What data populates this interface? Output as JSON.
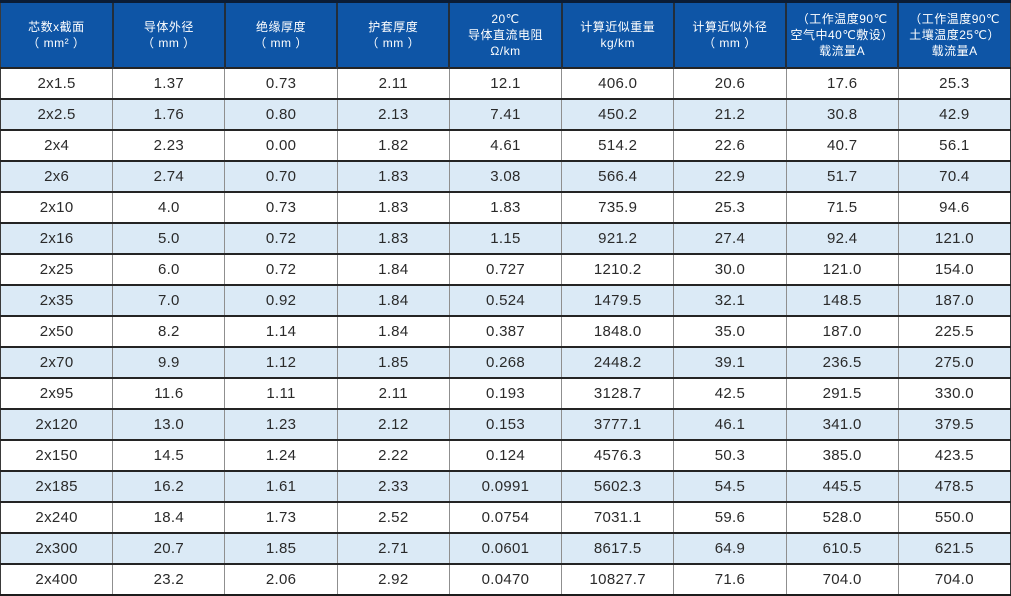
{
  "colors": {
    "header_bg": "#0e55a6",
    "header_text": "#ffffff",
    "row_alt_bg": "#dbeaf6",
    "cell_text": "#2a2a2a",
    "grid_dark": "#242424",
    "grid_gray": "#8f8f8f"
  },
  "table": {
    "headers": [
      {
        "lines": [
          "芯数x截面",
          "（ mm² ）"
        ]
      },
      {
        "lines": [
          "导体外径",
          "（ mm ）"
        ]
      },
      {
        "lines": [
          "绝缘厚度",
          "（ mm ）"
        ]
      },
      {
        "lines": [
          "护套厚度",
          "（ mm ）"
        ]
      },
      {
        "lines": [
          "20℃",
          "导体直流电阻",
          "Ω/km"
        ]
      },
      {
        "lines": [
          "计算近似重量",
          "kg/km"
        ]
      },
      {
        "lines": [
          "计算近似外径",
          "（ mm ）"
        ]
      },
      {
        "lines": [
          "（工作温度90℃",
          "空气中40℃敷设）",
          "载流量A"
        ]
      },
      {
        "lines": [
          "（工作温度90℃",
          "土壤温度25℃）",
          "载流量A"
        ]
      }
    ],
    "rows": [
      {
        "cells": [
          "2x1.5",
          "1.37",
          "0.73",
          "2.11",
          "12.1",
          "406.0",
          "20.6",
          "17.6",
          "25.3"
        ]
      },
      {
        "cells": [
          "2x2.5",
          "1.76",
          "0.80",
          "2.13",
          "7.41",
          "450.2",
          "21.2",
          "30.8",
          "42.9"
        ]
      },
      {
        "cells": [
          "2x4",
          "2.23",
          "0.00",
          "1.82",
          "4.61",
          "514.2",
          "22.6",
          "40.7",
          "56.1"
        ]
      },
      {
        "cells": [
          "2x6",
          "2.74",
          "0.70",
          "1.83",
          "3.08",
          "566.4",
          "22.9",
          "51.7",
          "70.4"
        ]
      },
      {
        "cells": [
          "2x10",
          "4.0",
          "0.73",
          "1.83",
          "1.83",
          "735.9",
          "25.3",
          "71.5",
          "94.6"
        ]
      },
      {
        "cells": [
          "2x16",
          "5.0",
          "0.72",
          "1.83",
          "1.15",
          "921.2",
          "27.4",
          "92.4",
          "121.0"
        ]
      },
      {
        "cells": [
          "2x25",
          "6.0",
          "0.72",
          "1.84",
          "0.727",
          "1210.2",
          "30.0",
          "121.0",
          "154.0"
        ]
      },
      {
        "cells": [
          "2x35",
          "7.0",
          "0.92",
          "1.84",
          "0.524",
          "1479.5",
          "32.1",
          "148.5",
          "187.0"
        ]
      },
      {
        "cells": [
          "2x50",
          "8.2",
          "1.14",
          "1.84",
          "0.387",
          "1848.0",
          "35.0",
          "187.0",
          "225.5"
        ]
      },
      {
        "cells": [
          "2x70",
          "9.9",
          "1.12",
          "1.85",
          "0.268",
          "2448.2",
          "39.1",
          "236.5",
          "275.0"
        ]
      },
      {
        "cells": [
          "2x95",
          "11.6",
          "1.11",
          "2.11",
          "0.193",
          "3128.7",
          "42.5",
          "291.5",
          "330.0"
        ]
      },
      {
        "cells": [
          "2x120",
          "13.0",
          "1.23",
          "2.12",
          "0.153",
          "3777.1",
          "46.1",
          "341.0",
          "379.5"
        ]
      },
      {
        "cells": [
          "2x150",
          "14.5",
          "1.24",
          "2.22",
          "0.124",
          "4576.3",
          "50.3",
          "385.0",
          "423.5"
        ]
      },
      {
        "cells": [
          "2x185",
          "16.2",
          "1.61",
          "2.33",
          "0.0991",
          "5602.3",
          "54.5",
          "445.5",
          "478.5"
        ]
      },
      {
        "cells": [
          "2x240",
          "18.4",
          "1.73",
          "2.52",
          "0.0754",
          "7031.1",
          "59.6",
          "528.0",
          "550.0"
        ]
      },
      {
        "cells": [
          "2x300",
          "20.7",
          "1.85",
          "2.71",
          "0.0601",
          "8617.5",
          "64.9",
          "610.5",
          "621.5"
        ]
      },
      {
        "cells": [
          "2x400",
          "23.2",
          "2.06",
          "2.92",
          "0.0470",
          "10827.7",
          "71.6",
          "704.0",
          "704.0"
        ]
      }
    ]
  }
}
